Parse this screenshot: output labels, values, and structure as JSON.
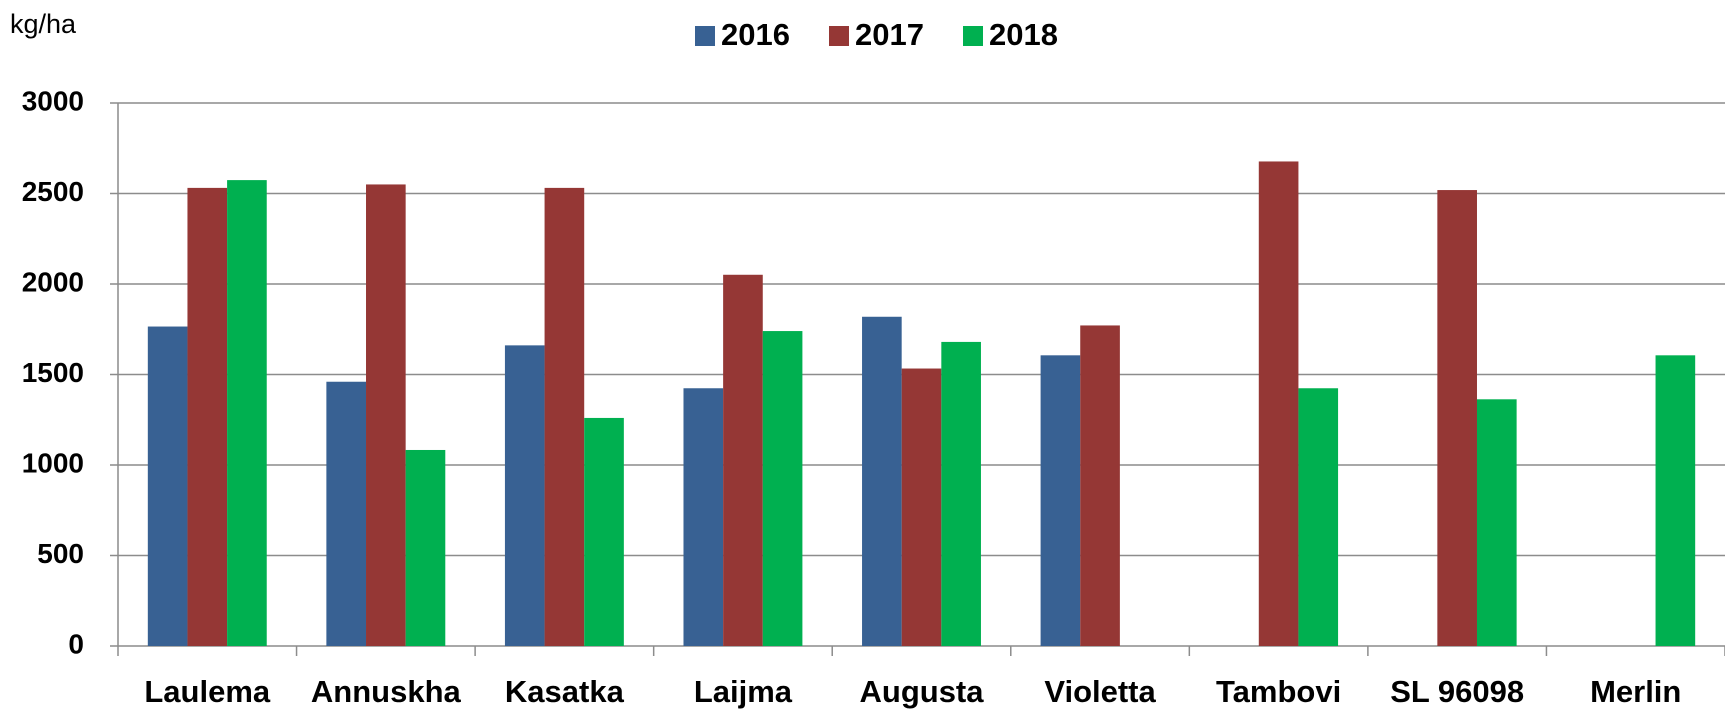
{
  "chart_data": {
    "type": "bar",
    "y_unit": "kg/ha",
    "categories": [
      "Laulema",
      "Annuskha",
      "Kasatka",
      "Laijma",
      "Augusta",
      "Violetta",
      "Tambovi",
      "SL 96098",
      "Merlin"
    ],
    "series": [
      {
        "name": "2016",
        "color": "#386193",
        "values": [
          1765,
          1460,
          1661,
          1424,
          1819,
          1606,
          null,
          null,
          null
        ]
      },
      {
        "name": "2017",
        "color": "#953735",
        "values": [
          2531,
          2550,
          2531,
          2051,
          1533,
          1771,
          2677,
          2519,
          null
        ]
      },
      {
        "name": "2018",
        "color": "#00b050",
        "values": [
          2574,
          1083,
          1260,
          1740,
          1680,
          null,
          1424,
          1363,
          1606
        ]
      }
    ],
    "ylim": [
      0,
      3000
    ],
    "yticks": [
      0,
      500,
      1000,
      1500,
      2000,
      2500,
      3000
    ],
    "grid": true,
    "legend": "top"
  }
}
